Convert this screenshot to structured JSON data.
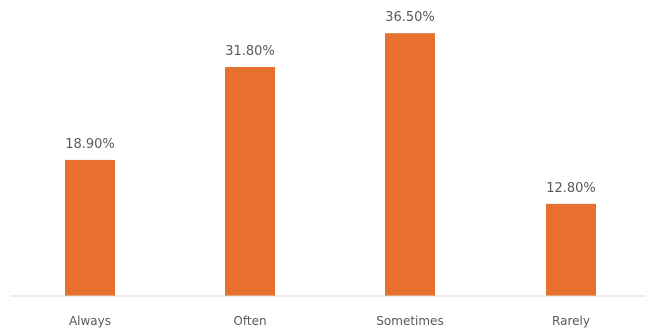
{
  "chart_data": {
    "type": "bar",
    "categories": [
      "Always",
      "Often",
      "Sometimes",
      "Rarely"
    ],
    "values": [
      18.9,
      31.8,
      36.5,
      12.8
    ],
    "value_labels": [
      "18.90%",
      "31.80%",
      "36.50%",
      "12.80%"
    ],
    "ylim": [
      0,
      40
    ],
    "grid": false,
    "legend": "none",
    "colors": {
      "bar": "#E8702F",
      "axis": "#d9d9d9",
      "text": "#595959"
    }
  }
}
